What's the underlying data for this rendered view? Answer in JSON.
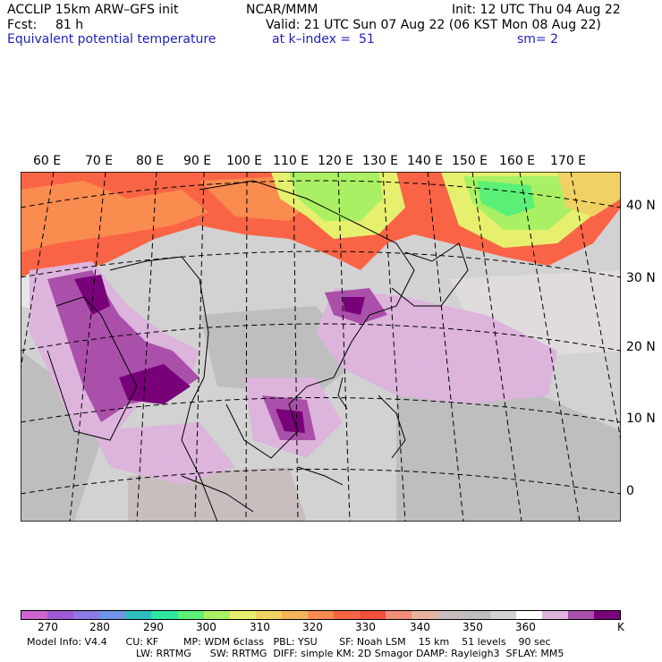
{
  "header": {
    "model": "ACCLIP 15km ARW–GFS init",
    "org": "NCAR/MMM",
    "init": "Init: 12 UTC Thu 04 Aug 22",
    "fcst_label": "Fcst:",
    "fcst_value": "81 h",
    "valid": "Valid: 21 UTC Sun 07 Aug 22 (06 KST Mon 08 Aug 22)",
    "field": "Equivalent potential temperature",
    "level": "at k–index =  51",
    "smoothing": "sm= 2"
  },
  "map": {
    "lon_labels": [
      "60 E",
      "70 E",
      "80 E",
      "90 E",
      "100 E",
      "110 E",
      "120 E",
      "130 E",
      "140 E",
      "150 E",
      "160 E",
      "170 E"
    ],
    "lat_labels": [
      "40 N",
      "30 N",
      "20 N",
      "10 N",
      "0"
    ]
  },
  "colorbar": {
    "colors": [
      "#cc66cc",
      "#a05ad6",
      "#8c78e6",
      "#6e96e6",
      "#2ebcbc",
      "#2ee6a0",
      "#5af078",
      "#aaf064",
      "#e6f06e",
      "#f0d264",
      "#f5b45a",
      "#fa8c50",
      "#fa6446",
      "#f0503c",
      "#f08c78",
      "#e6b4a0",
      "#c8bebe",
      "#bebebe",
      "#d2d2d2",
      "#ffffff",
      "#dcb4dc",
      "#aa50aa",
      "#780078"
    ],
    "unit": "K",
    "labels": [
      "270",
      "280",
      "290",
      "300",
      "310",
      "320",
      "330",
      "340",
      "350",
      "360"
    ]
  },
  "footer": {
    "line1": "Model Info: V4.4      CU: KF        MP: WDM 6class   PBL: YSU       SF: Noah LSM    15 km    51 levels    90 sec",
    "line2": "LW: RRTMG      SW: RRTMG  DIFF: simple KM: 2D Smagor DAMP: Rayleigh3  SFLAY: MM5"
  }
}
